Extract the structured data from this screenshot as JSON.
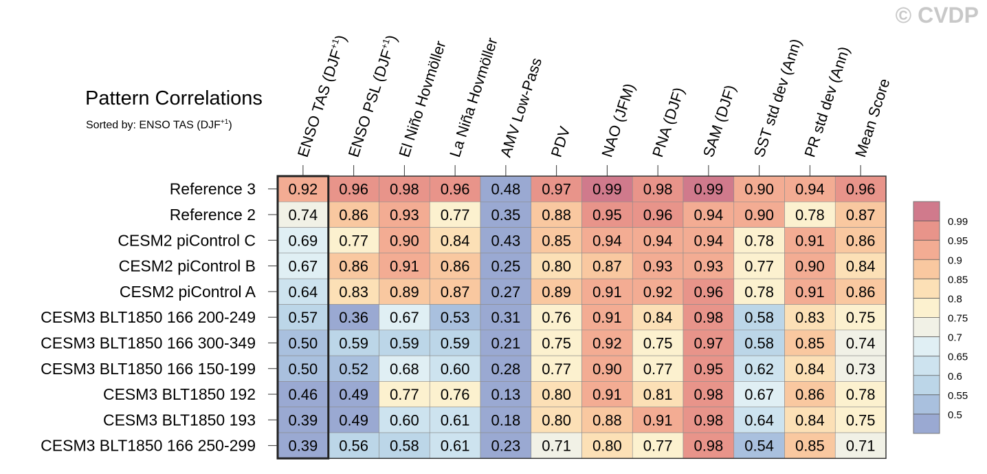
{
  "title": "Pattern Correlations",
  "subtitle": "Sorted by: ENSO TAS (DJF",
  "subtitle_sup": "+1",
  "subtitle_close": ")",
  "copyright": "© CVDP",
  "chart_data": {
    "type": "heatmap",
    "title": "Pattern Correlations",
    "sorted_by": "ENSO TAS (DJF+1)",
    "columns": [
      {
        "label": "ENSO TAS (DJF",
        "sup": "+1",
        "close": ")"
      },
      {
        "label": "ENSO PSL (DJF",
        "sup": "+1",
        "close": ")"
      },
      {
        "label": "El Niño Hovmöller",
        "sup": "",
        "close": ""
      },
      {
        "label": "La Niña Hovmöller",
        "sup": "",
        "close": ""
      },
      {
        "label": "AMV Low-Pass",
        "sup": "",
        "close": ""
      },
      {
        "label": "PDV",
        "sup": "",
        "close": ""
      },
      {
        "label": "NAO (JFM)",
        "sup": "",
        "close": ""
      },
      {
        "label": "PNA (DJF)",
        "sup": "",
        "close": ""
      },
      {
        "label": "SAM (DJF)",
        "sup": "",
        "close": ""
      },
      {
        "label": "SST std dev (Ann)",
        "sup": "",
        "close": ""
      },
      {
        "label": "PR std dev (Ann)",
        "sup": "",
        "close": ""
      },
      {
        "label": "Mean Score",
        "sup": "",
        "close": ""
      }
    ],
    "rows": [
      "Reference 3",
      "Reference 2",
      "CESM2 piControl C",
      "CESM2 piControl B",
      "CESM2 piControl A",
      "CESM3 BLT1850 166 200-249",
      "CESM3 BLT1850 166 300-349",
      "CESM3 BLT1850 166 150-199",
      "CESM3 BLT1850 192",
      "CESM3 BLT1850 193",
      "CESM3 BLT1850 166 250-299"
    ],
    "values": [
      [
        "0.92",
        "0.96",
        "0.98",
        "0.96",
        "0.48",
        "0.97",
        "0.99",
        "0.98",
        "0.99",
        "0.90",
        "0.94",
        "0.96"
      ],
      [
        "0.74",
        "0.86",
        "0.93",
        "0.77",
        "0.35",
        "0.88",
        "0.95",
        "0.96",
        "0.94",
        "0.90",
        "0.78",
        "0.87"
      ],
      [
        "0.69",
        "0.77",
        "0.90",
        "0.84",
        "0.43",
        "0.85",
        "0.94",
        "0.94",
        "0.94",
        "0.78",
        "0.91",
        "0.86"
      ],
      [
        "0.67",
        "0.86",
        "0.91",
        "0.86",
        "0.25",
        "0.80",
        "0.87",
        "0.93",
        "0.93",
        "0.77",
        "0.90",
        "0.84"
      ],
      [
        "0.64",
        "0.83",
        "0.89",
        "0.87",
        "0.27",
        "0.89",
        "0.91",
        "0.92",
        "0.96",
        "0.78",
        "0.91",
        "0.86"
      ],
      [
        "0.57",
        "0.36",
        "0.67",
        "0.53",
        "0.31",
        "0.76",
        "0.91",
        "0.84",
        "0.98",
        "0.58",
        "0.83",
        "0.75"
      ],
      [
        "0.50",
        "0.59",
        "0.59",
        "0.59",
        "0.21",
        "0.75",
        "0.92",
        "0.75",
        "0.97",
        "0.58",
        "0.85",
        "0.74"
      ],
      [
        "0.50",
        "0.52",
        "0.68",
        "0.60",
        "0.28",
        "0.77",
        "0.90",
        "0.77",
        "0.95",
        "0.62",
        "0.84",
        "0.73"
      ],
      [
        "0.46",
        "0.49",
        "0.77",
        "0.76",
        "0.13",
        "0.80",
        "0.91",
        "0.81",
        "0.98",
        "0.67",
        "0.86",
        "0.78"
      ],
      [
        "0.39",
        "0.49",
        "0.60",
        "0.61",
        "0.18",
        "0.80",
        "0.88",
        "0.91",
        "0.98",
        "0.64",
        "0.84",
        "0.75"
      ],
      [
        "0.39",
        "0.56",
        "0.58",
        "0.61",
        "0.23",
        "0.71",
        "0.80",
        "0.77",
        "0.98",
        "0.54",
        "0.85",
        "0.71"
      ]
    ],
    "highlighted_column": 0,
    "colorbar": {
      "levels": [
        "0.5",
        "0.55",
        "0.6",
        "0.65",
        "0.7",
        "0.75",
        "0.8",
        "0.85",
        "0.9",
        "0.95",
        "0.99"
      ],
      "colors": [
        "#9aa9d2",
        "#a9c0de",
        "#bcd6e8",
        "#cde3ef",
        "#e0eff4",
        "#f1f1e6",
        "#fcf1cf",
        "#fce0b6",
        "#f9c8a0",
        "#f3ac93",
        "#e8948a",
        "#d07a8c"
      ]
    }
  }
}
